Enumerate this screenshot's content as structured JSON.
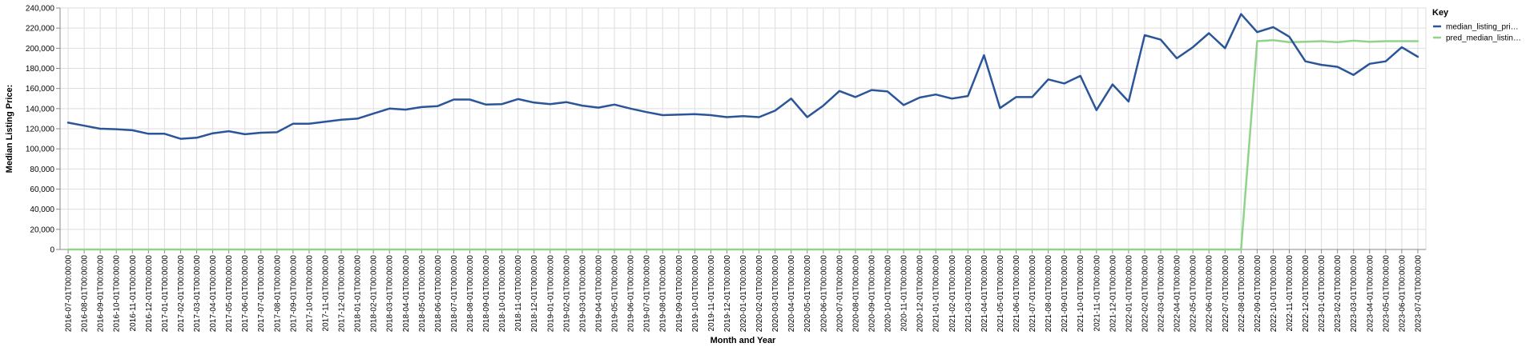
{
  "chart_data": {
    "type": "line",
    "xlabel": "Month and Year",
    "ylabel": "Median Listing Price:",
    "ylim": [
      0,
      240000
    ],
    "y_ticks": [
      "0",
      "20,000",
      "40,000",
      "60,000",
      "80,000",
      "100,000",
      "120,000",
      "140,000",
      "160,000",
      "180,000",
      "200,000",
      "220,000",
      "240,000"
    ],
    "grid": true,
    "legend_position": "right",
    "legend_title": "Key",
    "x": [
      "2016-07-01T00:00:00",
      "2016-08-01T00:00:00",
      "2016-09-01T00:00:00",
      "2016-10-01T00:00:00",
      "2016-11-01T00:00:00",
      "2016-12-01T00:00:00",
      "2017-01-01T00:00:00",
      "2017-02-01T00:00:00",
      "2017-03-01T00:00:00",
      "2017-04-01T00:00:00",
      "2017-05-01T00:00:00",
      "2017-06-01T00:00:00",
      "2017-07-01T00:00:00",
      "2017-08-01T00:00:00",
      "2017-09-01T00:00:00",
      "2017-10-01T00:00:00",
      "2017-11-01T00:00:00",
      "2017-12-01T00:00:00",
      "2018-01-01T00:00:00",
      "2018-02-01T00:00:00",
      "2018-03-01T00:00:00",
      "2018-04-01T00:00:00",
      "2018-05-01T00:00:00",
      "2018-06-01T00:00:00",
      "2018-07-01T00:00:00",
      "2018-08-01T00:00:00",
      "2018-09-01T00:00:00",
      "2018-10-01T00:00:00",
      "2018-11-01T00:00:00",
      "2018-12-01T00:00:00",
      "2019-01-01T00:00:00",
      "2019-02-01T00:00:00",
      "2019-03-01T00:00:00",
      "2019-04-01T00:00:00",
      "2019-05-01T00:00:00",
      "2019-06-01T00:00:00",
      "2019-07-01T00:00:00",
      "2019-08-01T00:00:00",
      "2019-09-01T00:00:00",
      "2019-10-01T00:00:00",
      "2019-11-01T00:00:00",
      "2019-12-01T00:00:00",
      "2020-01-01T00:00:00",
      "2020-02-01T00:00:00",
      "2020-03-01T00:00:00",
      "2020-04-01T00:00:00",
      "2020-05-01T00:00:00",
      "2020-06-01T00:00:00",
      "2020-07-01T00:00:00",
      "2020-08-01T00:00:00",
      "2020-09-01T00:00:00",
      "2020-10-01T00:00:00",
      "2020-11-01T00:00:00",
      "2020-12-01T00:00:00",
      "2021-01-01T00:00:00",
      "2021-02-01T00:00:00",
      "2021-03-01T00:00:00",
      "2021-04-01T00:00:00",
      "2021-05-01T00:00:00",
      "2021-06-01T00:00:00",
      "2021-07-01T00:00:00",
      "2021-08-01T00:00:00",
      "2021-09-01T00:00:00",
      "2021-10-01T00:00:00",
      "2021-11-01T00:00:00",
      "2021-12-01T00:00:00",
      "2022-01-01T00:00:00",
      "2022-02-01T00:00:00",
      "2022-03-01T00:00:00",
      "2022-04-01T00:00:00",
      "2022-05-01T00:00:00",
      "2022-06-01T00:00:00",
      "2022-07-01T00:00:00",
      "2022-08-01T00:00:00",
      "2022-09-01T00:00:00",
      "2022-10-01T00:00:00",
      "2022-11-01T00:00:00",
      "2022-12-01T00:00:00",
      "2023-01-01T00:00:00",
      "2023-02-01T00:00:00",
      "2023-03-01T00:00:00",
      "2023-04-01T00:00:00",
      "2023-05-01T00:00:00",
      "2023-06-01T00:00:00",
      "2023-07-01T00:00:00"
    ],
    "series": [
      {
        "name": "median_listing_pri…",
        "color": "#2a5599",
        "values": [
          126000,
          123000,
          120000,
          119500,
          118500,
          115000,
          115000,
          110000,
          111000,
          115500,
          117500,
          114500,
          116000,
          116500,
          125000,
          125000,
          127000,
          129000,
          130000,
          135000,
          140000,
          139000,
          141500,
          142500,
          149000,
          149000,
          144000,
          144500,
          149500,
          146000,
          144500,
          146500,
          143000,
          141000,
          144000,
          140000,
          136500,
          133500,
          134000,
          134500,
          133500,
          131500,
          132500,
          131500,
          138000,
          150000,
          131500,
          143000,
          157500,
          151500,
          158500,
          157000,
          143500,
          151000,
          154000,
          150000,
          152500,
          193000,
          140500,
          151500,
          151500,
          169000,
          165000,
          172500,
          138500,
          164000,
          147000,
          213000,
          208500,
          190000,
          201000,
          215000,
          200000,
          234000,
          216000,
          221000,
          211500,
          187000,
          183500,
          181500,
          173500,
          184500,
          187000,
          201000,
          191500
        ]
      },
      {
        "name": "pred_median_listin…",
        "color": "#90d48b",
        "values": [
          0,
          0,
          0,
          0,
          0,
          0,
          0,
          0,
          0,
          0,
          0,
          0,
          0,
          0,
          0,
          0,
          0,
          0,
          0,
          0,
          0,
          0,
          0,
          0,
          0,
          0,
          0,
          0,
          0,
          0,
          0,
          0,
          0,
          0,
          0,
          0,
          0,
          0,
          0,
          0,
          0,
          0,
          0,
          0,
          0,
          0,
          0,
          0,
          0,
          0,
          0,
          0,
          0,
          0,
          0,
          0,
          0,
          0,
          0,
          0,
          0,
          0,
          0,
          0,
          0,
          0,
          0,
          0,
          0,
          0,
          0,
          0,
          0,
          0,
          207000,
          208000,
          206000,
          206500,
          207000,
          206000,
          207500,
          206500,
          207000,
          207000,
          207000
        ]
      }
    ]
  }
}
